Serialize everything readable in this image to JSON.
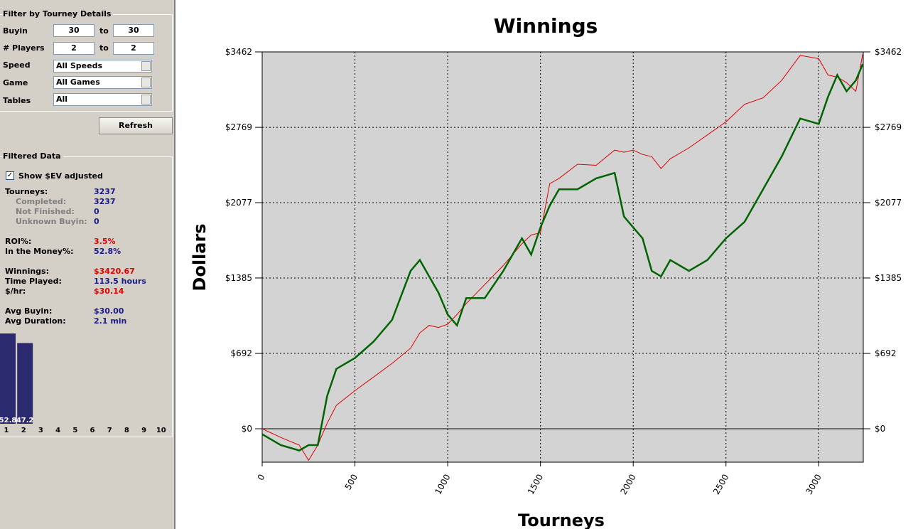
{
  "filter": {
    "heading": "Filter by Tourney Details",
    "buyin": {
      "label": "Buyin",
      "from": "30",
      "to_label": "to",
      "to": "30"
    },
    "players": {
      "label": "# Players",
      "from": "2",
      "to_label": "to",
      "to": "2"
    },
    "speed": {
      "label": "Speed",
      "value": "All Speeds"
    },
    "game": {
      "label": "Game",
      "value": "All Games"
    },
    "tables": {
      "label": "Tables",
      "value": "All"
    },
    "refresh": "Refresh"
  },
  "filtered_data": {
    "heading": "Filtered Data",
    "ev_checkbox": {
      "label": "Show $EV adjusted",
      "checked": true
    },
    "stats": [
      {
        "label": "Tourneys:",
        "value": "3237"
      },
      {
        "label": "Completed:",
        "value": "3237"
      },
      {
        "label": "Not Finished:",
        "value": "0"
      },
      {
        "label": "Unknown Buyin:",
        "value": "0"
      },
      {
        "label": "ROI%:",
        "value": "3.5%"
      },
      {
        "label": "In the Money%:",
        "value": "52.8%"
      },
      {
        "label": "Winnings:",
        "value": "$3420.67"
      },
      {
        "label": "Time Played:",
        "value": "113.5 hours"
      },
      {
        "label": "$/hr:",
        "value": "$30.14"
      },
      {
        "label": "Avg Buyin:",
        "value": "$30.00"
      },
      {
        "label": "Avg Duration:",
        "value": "2.1 min"
      }
    ]
  },
  "chart_data": [
    {
      "type": "line",
      "title": "Winnings",
      "xlabel": "Tourneys",
      "ylabel": "Dollars",
      "grid": true,
      "xlim": [
        0,
        3240
      ],
      "xticks": [
        0,
        500,
        1000,
        1500,
        2000,
        2500,
        3000
      ],
      "ylim": [
        -307,
        3462
      ],
      "yticks": [
        {
          "value": 0,
          "label": "$0"
        },
        {
          "value": 692,
          "label": "$692"
        },
        {
          "value": 1385,
          "label": "$1385"
        },
        {
          "value": 2077,
          "label": "$2077"
        },
        {
          "value": 2769,
          "label": "$2769"
        },
        {
          "value": 3462,
          "label": "$3462"
        }
      ],
      "x": [
        0,
        100,
        200,
        250,
        300,
        350,
        400,
        500,
        600,
        700,
        800,
        850,
        900,
        950,
        1000,
        1050,
        1100,
        1200,
        1300,
        1400,
        1450,
        1500,
        1550,
        1600,
        1700,
        1800,
        1900,
        1950,
        2000,
        2050,
        2100,
        2150,
        2200,
        2300,
        2400,
        2500,
        2600,
        2700,
        2800,
        2900,
        3000,
        3050,
        3100,
        3150,
        3200,
        3237
      ],
      "series": [
        {
          "color": "#e00000",
          "values": [
            0,
            -80,
            -150,
            -290,
            -150,
            50,
            215,
            350,
            475,
            600,
            740,
            880,
            950,
            930,
            960,
            1050,
            1150,
            1325,
            1500,
            1700,
            1780,
            1800,
            2250,
            2300,
            2430,
            2420,
            2560,
            2540,
            2560,
            2520,
            2500,
            2390,
            2480,
            2580,
            2700,
            2820,
            2980,
            3040,
            3200,
            3430,
            3400,
            3250,
            3230,
            3180,
            3100,
            3440
          ]
        },
        {
          "color": "#006400",
          "values": [
            -50,
            -150,
            -200,
            -150,
            -150,
            300,
            550,
            650,
            800,
            1000,
            1450,
            1550,
            1400,
            1250,
            1050,
            950,
            1200,
            1200,
            1450,
            1750,
            1600,
            1850,
            2050,
            2200,
            2200,
            2300,
            2350,
            1950,
            1850,
            1750,
            1450,
            1400,
            1550,
            1450,
            1550,
            1750,
            1900,
            2200,
            2500,
            2850,
            2800,
            3050,
            3250,
            3100,
            3200,
            3350
          ]
        }
      ]
    },
    {
      "type": "bar",
      "color": "#2b2a6e",
      "categories": [
        "1",
        "2",
        "3",
        "4",
        "5",
        "6",
        "7",
        "8",
        "9",
        "10"
      ],
      "values": [
        52.8,
        47.2,
        0,
        0,
        0,
        0,
        0,
        0,
        0,
        0
      ],
      "ylim": [
        0,
        53
      ]
    }
  ]
}
